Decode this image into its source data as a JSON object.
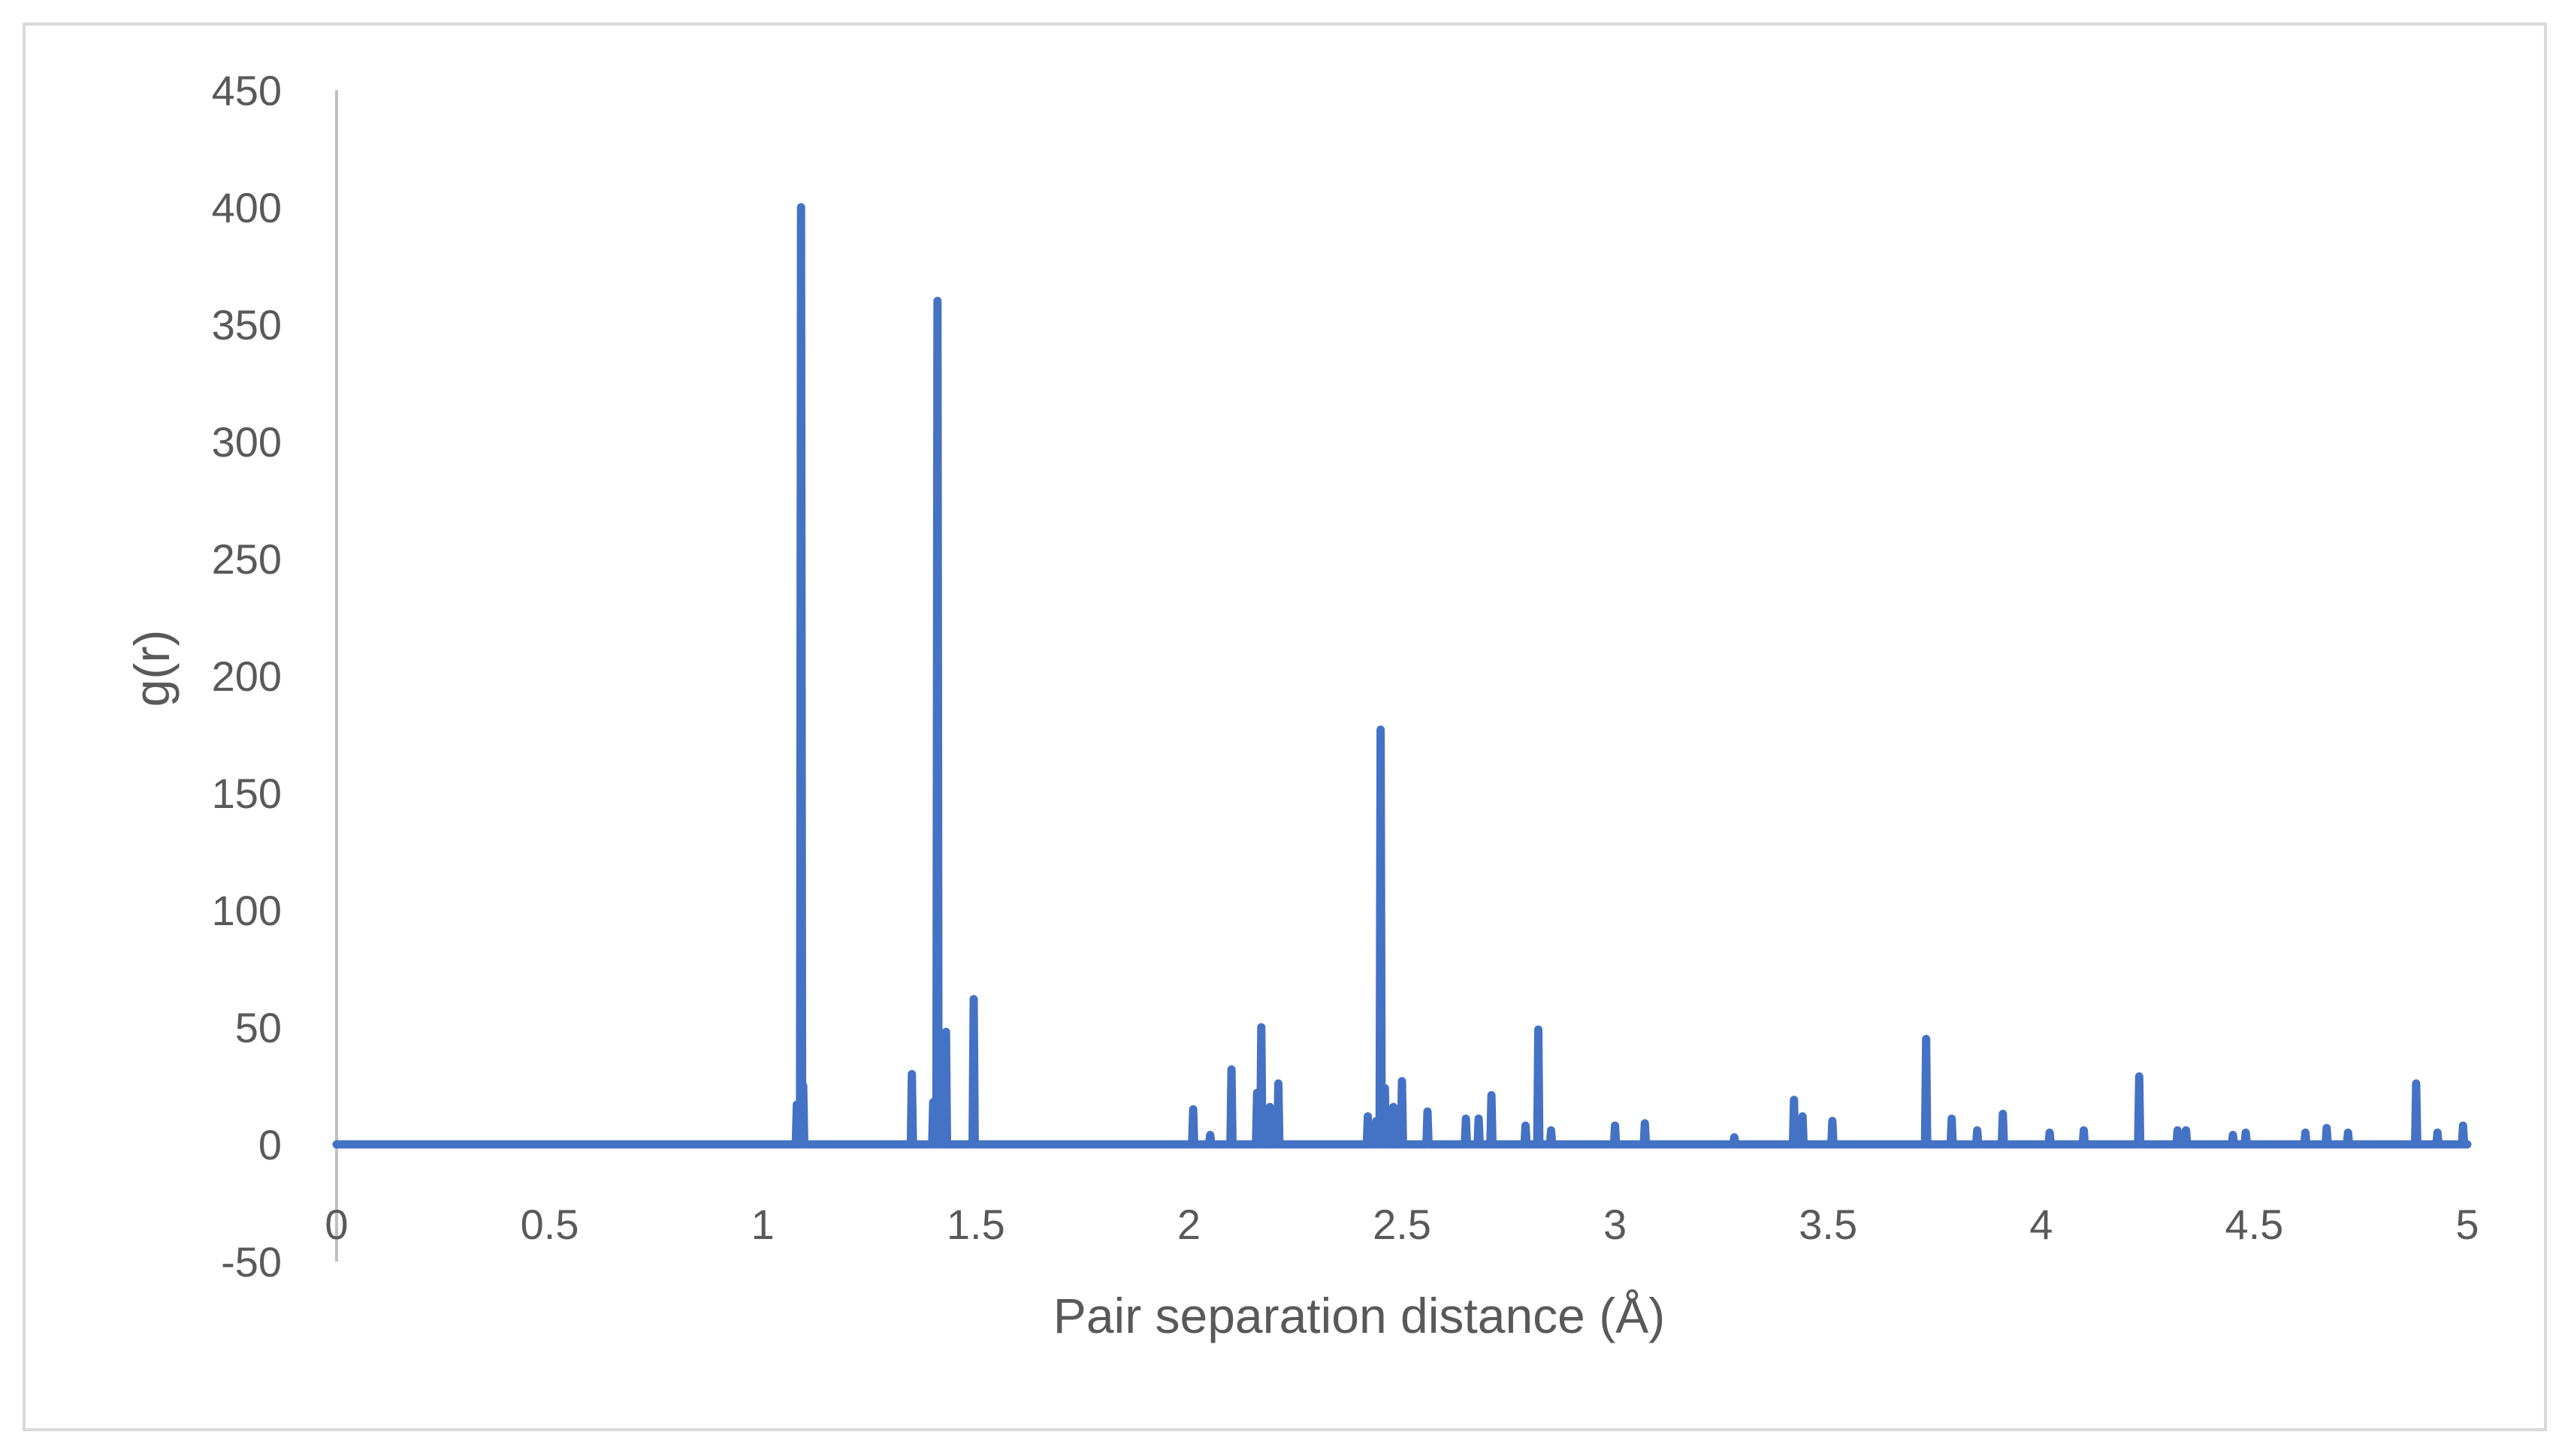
{
  "chart_data": {
    "type": "line",
    "title": "",
    "xlabel": "Pair separation distance (Å)",
    "ylabel": "g(r)",
    "xlim": [
      0,
      5
    ],
    "ylim": [
      -50,
      450
    ],
    "xticks": [
      0,
      0.5,
      1,
      1.5,
      2,
      2.5,
      3,
      3.5,
      4,
      4.5,
      5
    ],
    "xtick_labels": [
      "0",
      "0.5",
      "1",
      "1.5",
      "2",
      "2.5",
      "3",
      "3.5",
      "4",
      "4.5",
      "5"
    ],
    "yticks": [
      -50,
      0,
      50,
      100,
      150,
      200,
      250,
      300,
      350,
      400,
      450
    ],
    "ytick_labels": [
      "-50",
      "0",
      "50",
      "100",
      "150",
      "200",
      "250",
      "300",
      "350",
      "400",
      "450"
    ],
    "grid": false,
    "legend": "none",
    "series": [
      {
        "color": "#4472c4",
        "peaks": [
          [
            1.08,
            17
          ],
          [
            1.09,
            400
          ],
          [
            1.095,
            25
          ],
          [
            1.35,
            30
          ],
          [
            1.4,
            18
          ],
          [
            1.41,
            360
          ],
          [
            1.42,
            45
          ],
          [
            1.43,
            48
          ],
          [
            1.495,
            62
          ],
          [
            2.01,
            15
          ],
          [
            2.05,
            4
          ],
          [
            2.1,
            32
          ],
          [
            2.16,
            22
          ],
          [
            2.17,
            50
          ],
          [
            2.19,
            16
          ],
          [
            2.21,
            26
          ],
          [
            2.42,
            12
          ],
          [
            2.44,
            10
          ],
          [
            2.45,
            177
          ],
          [
            2.46,
            24
          ],
          [
            2.48,
            16
          ],
          [
            2.5,
            27
          ],
          [
            2.56,
            14
          ],
          [
            2.65,
            11
          ],
          [
            2.68,
            11
          ],
          [
            2.71,
            21
          ],
          [
            2.79,
            8
          ],
          [
            2.82,
            49
          ],
          [
            2.85,
            6
          ],
          [
            3.0,
            8
          ],
          [
            3.07,
            9
          ],
          [
            3.28,
            3
          ],
          [
            3.42,
            19
          ],
          [
            3.44,
            12
          ],
          [
            3.51,
            10
          ],
          [
            3.73,
            45
          ],
          [
            3.79,
            11
          ],
          [
            3.85,
            6
          ],
          [
            3.91,
            13
          ],
          [
            4.02,
            5
          ],
          [
            4.1,
            6
          ],
          [
            4.23,
            29
          ],
          [
            4.32,
            6
          ],
          [
            4.34,
            6
          ],
          [
            4.45,
            4
          ],
          [
            4.48,
            5
          ],
          [
            4.62,
            5
          ],
          [
            4.67,
            7
          ],
          [
            4.72,
            5
          ],
          [
            4.88,
            26
          ],
          [
            4.93,
            5
          ],
          [
            4.99,
            8
          ]
        ]
      }
    ]
  }
}
